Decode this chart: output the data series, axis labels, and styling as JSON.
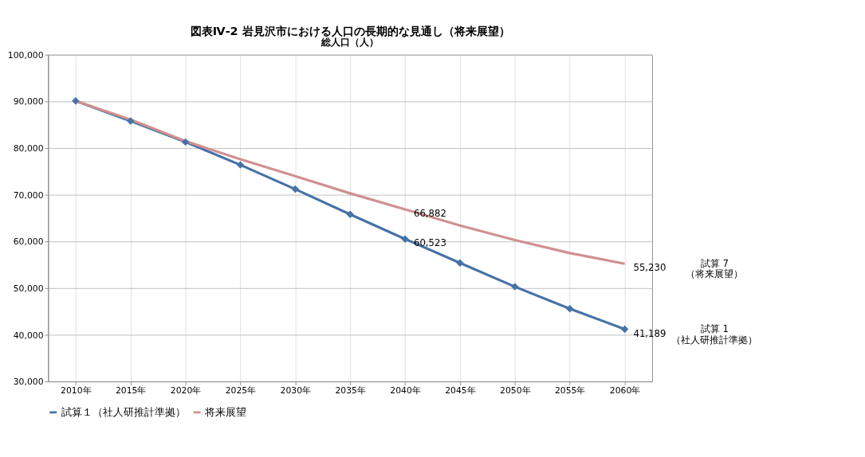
{
  "chart_data": {
    "type": "line",
    "title": "図表Ⅳ-2 岩見沢市における人口の長期的な見通し（将来展望）",
    "ylabel": "総人口（人）",
    "categories": [
      "2010年",
      "2015年",
      "2020年",
      "2025年",
      "2030年",
      "2035年",
      "2040年",
      "2045年",
      "2050年",
      "2055年",
      "2060年"
    ],
    "series": [
      {
        "name": "試算１（社人研推計準拠）",
        "color": "#4572a7",
        "marker": "diamond",
        "values": [
          90100,
          85800,
          81300,
          76400,
          71200,
          65800,
          60523,
          55400,
          50300,
          45600,
          41189
        ],
        "value_labels": [
          null,
          null,
          null,
          null,
          null,
          null,
          "60,523",
          null,
          null,
          null,
          "41,189"
        ]
      },
      {
        "name": "将来展望",
        "color": "#d09090",
        "marker": "none",
        "values": [
          90100,
          86100,
          81500,
          77600,
          74000,
          70300,
          66882,
          63400,
          60300,
          57500,
          55230
        ],
        "value_labels": [
          null,
          null,
          null,
          null,
          null,
          null,
          "66,882",
          null,
          null,
          null,
          "55,230"
        ]
      }
    ],
    "annotations": [
      "試算 1\n（社人研推計準拠）",
      "試算 7\n（将来展望）"
    ],
    "ylim": [
      30000,
      100000
    ],
    "yticks": [
      {
        "value": 30000,
        "label": "30,000"
      },
      {
        "value": 40000,
        "label": "40,000"
      },
      {
        "value": 50000,
        "label": "50,000"
      },
      {
        "value": 60000,
        "label": "60,000"
      },
      {
        "value": 70000,
        "label": "70,000"
      },
      {
        "value": 80000,
        "label": "80,000"
      },
      {
        "value": 90000,
        "label": "90,000"
      },
      {
        "value": 100000,
        "label": "100,000"
      }
    ],
    "grid": true,
    "legend": "bottom",
    "line_style": "solid"
  }
}
